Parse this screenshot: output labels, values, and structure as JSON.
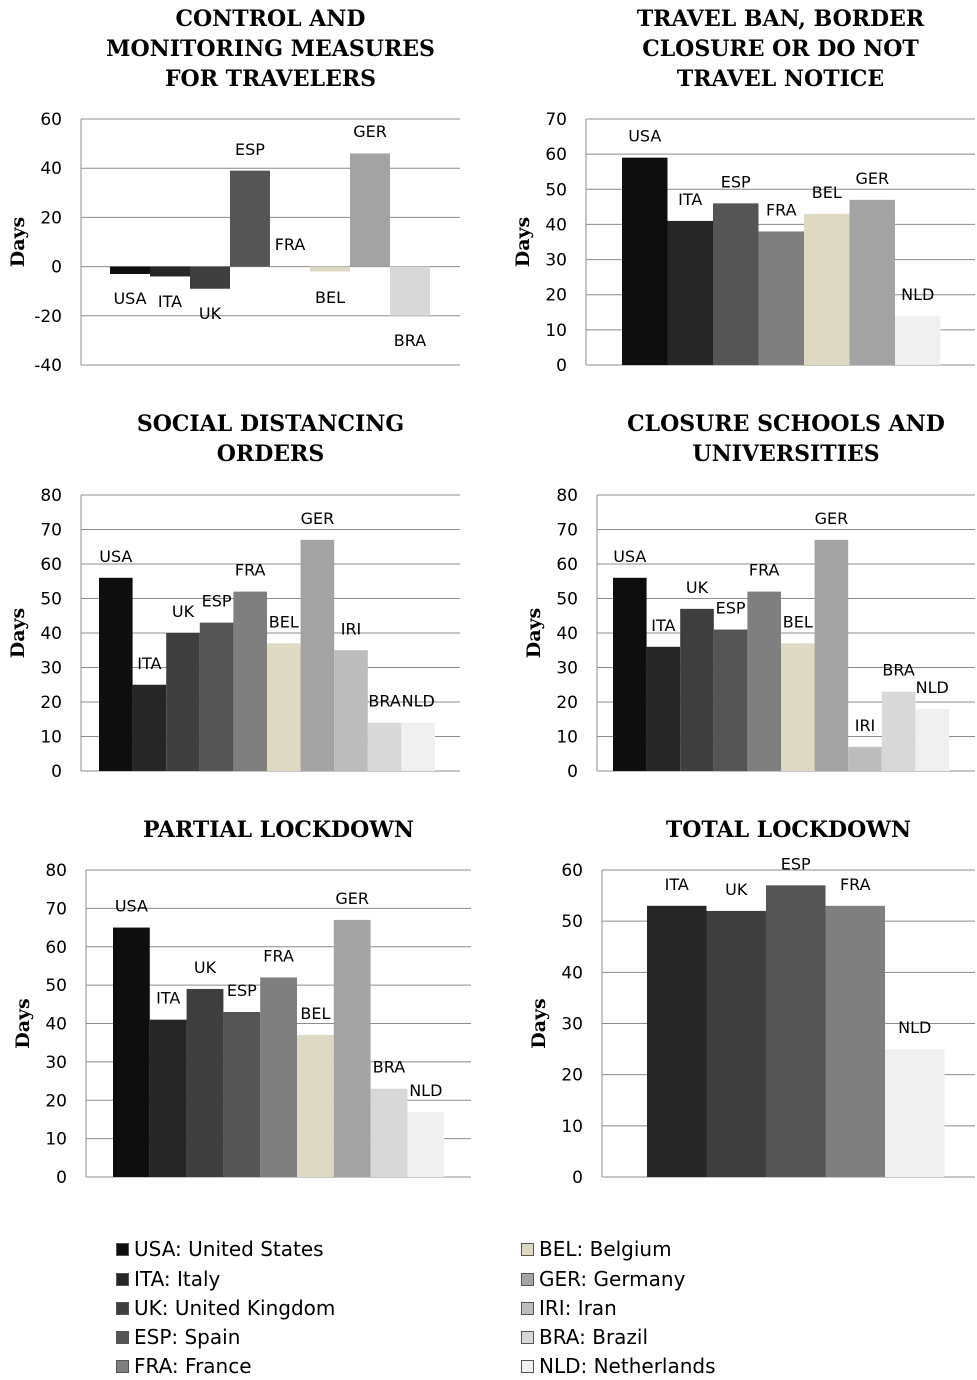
{
  "chart_data": [
    {
      "type": "bar",
      "title": [
        "CONTROL AND",
        "MONITORING MEASURES",
        "FOR TRAVELERS"
      ],
      "ylabel": "Days",
      "ylim": [
        -40,
        60
      ],
      "yticks": [
        -40,
        -20,
        0,
        20,
        40,
        60
      ],
      "grid": true,
      "categories": [
        "USA",
        "ITA",
        "UK",
        "ESP",
        "FRA",
        "BEL",
        "GER",
        "BRA"
      ],
      "values": [
        -3,
        -4,
        -9,
        39,
        0,
        -2,
        46,
        -20
      ]
    },
    {
      "type": "bar",
      "title": [
        "TRAVEL BAN, BORDER",
        "CLOSURE OR DO NOT",
        "TRAVEL NOTICE"
      ],
      "ylabel": "Days",
      "ylim": [
        0,
        70
      ],
      "yticks": [
        0,
        10,
        20,
        30,
        40,
        50,
        60,
        70
      ],
      "grid": true,
      "categories": [
        "USA",
        "ITA",
        "ESP",
        "FRA",
        "BEL",
        "GER",
        "NLD"
      ],
      "values": [
        59,
        41,
        46,
        38,
        43,
        47,
        14
      ]
    },
    {
      "type": "bar",
      "title": [
        "SOCIAL DISTANCING",
        "ORDERS"
      ],
      "ylabel": "Days",
      "ylim": [
        0,
        80
      ],
      "yticks": [
        0,
        10,
        20,
        30,
        40,
        50,
        60,
        70,
        80
      ],
      "grid": true,
      "categories": [
        "USA",
        "ITA",
        "UK",
        "ESP",
        "FRA",
        "BEL",
        "GER",
        "IRI",
        "BRA",
        "NLD"
      ],
      "values": [
        56,
        25,
        40,
        43,
        52,
        37,
        67,
        35,
        14,
        14
      ]
    },
    {
      "type": "bar",
      "title": [
        "CLOSURE SCHOOLS AND",
        "UNIVERSITIES"
      ],
      "ylabel": "Days",
      "ylim": [
        0,
        80
      ],
      "yticks": [
        0,
        10,
        20,
        30,
        40,
        50,
        60,
        70,
        80
      ],
      "grid": true,
      "categories": [
        "USA",
        "ITA",
        "UK",
        "ESP",
        "FRA",
        "BEL",
        "GER",
        "IRI",
        "BRA",
        "NLD"
      ],
      "values": [
        56,
        36,
        47,
        41,
        52,
        37,
        67,
        7,
        23,
        18
      ]
    },
    {
      "type": "bar",
      "title": [
        "PARTIAL LOCKDOWN"
      ],
      "ylabel": "Days",
      "ylim": [
        0,
        80
      ],
      "yticks": [
        0,
        10,
        20,
        30,
        40,
        50,
        60,
        70,
        80
      ],
      "grid": true,
      "categories": [
        "USA",
        "ITA",
        "UK",
        "ESP",
        "FRA",
        "BEL",
        "GER",
        "BRA",
        "NLD"
      ],
      "values": [
        65,
        41,
        49,
        43,
        52,
        37,
        67,
        23,
        17
      ]
    },
    {
      "type": "bar",
      "title": [
        "TOTAL LOCKDOWN"
      ],
      "ylabel": "Days",
      "ylim": [
        0,
        60
      ],
      "yticks": [
        0,
        10,
        20,
        30,
        40,
        50,
        60
      ],
      "grid": true,
      "categories": [
        "ITA",
        "UK",
        "ESP",
        "FRA",
        "NLD"
      ],
      "values": [
        53,
        52,
        57,
        53,
        25
      ]
    }
  ],
  "colors": {
    "USA": "#0e0e0e",
    "ITA": "#262626",
    "UK": "#3e3e3e",
    "ESP": "#555555",
    "FRA": "#7f7f7f",
    "BEL": "#ddd9c3",
    "GER": "#a3a3a3",
    "IRI": "#bcbcbc",
    "BRA": "#d8d8d8",
    "NLD": "#f0f0f0"
  },
  "legend": [
    {
      "code": "USA",
      "label": "USA: United States"
    },
    {
      "code": "ITA",
      "label": "ITA: Italy"
    },
    {
      "code": "UK",
      "label": "UK: United Kingdom"
    },
    {
      "code": "ESP",
      "label": "ESP: Spain"
    },
    {
      "code": "FRA",
      "label": "FRA: France"
    },
    {
      "code": "BEL",
      "label": "BEL: Belgium"
    },
    {
      "code": "GER",
      "label": "GER: Germany"
    },
    {
      "code": "IRI",
      "label": "IRI: Iran"
    },
    {
      "code": "BRA",
      "label": "BRA: Brazil"
    },
    {
      "code": "NLD",
      "label": "NLD: Netherlands"
    }
  ]
}
